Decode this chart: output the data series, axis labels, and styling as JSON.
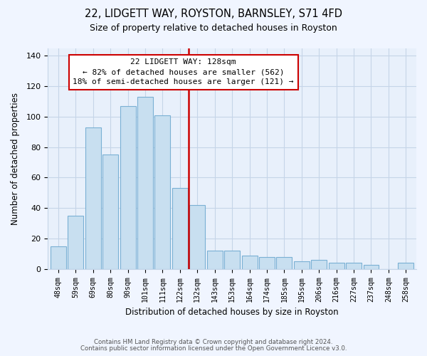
{
  "title": "22, LIDGETT WAY, ROYSTON, BARNSLEY, S71 4FD",
  "subtitle": "Size of property relative to detached houses in Royston",
  "xlabel": "Distribution of detached houses by size in Royston",
  "ylabel": "Number of detached properties",
  "bar_labels": [
    "48sqm",
    "59sqm",
    "69sqm",
    "80sqm",
    "90sqm",
    "101sqm",
    "111sqm",
    "122sqm",
    "132sqm",
    "143sqm",
    "153sqm",
    "164sqm",
    "174sqm",
    "185sqm",
    "195sqm",
    "206sqm",
    "216sqm",
    "227sqm",
    "237sqm",
    "248sqm",
    "258sqm"
  ],
  "bar_values": [
    15,
    35,
    93,
    75,
    107,
    113,
    101,
    53,
    42,
    12,
    12,
    9,
    8,
    8,
    5,
    6,
    4,
    4,
    3,
    0,
    4
  ],
  "bar_color": "#c8dff0",
  "bar_edge_color": "#7ab0d4",
  "vline_color": "#cc0000",
  "annotation_title": "22 LIDGETT WAY: 128sqm",
  "annotation_line1": "← 82% of detached houses are smaller (562)",
  "annotation_line2": "18% of semi-detached houses are larger (121) →",
  "annotation_box_color": "#ffffff",
  "annotation_box_edge_color": "#cc0000",
  "ylim": [
    0,
    145
  ],
  "yticks": [
    0,
    20,
    40,
    60,
    80,
    100,
    120,
    140
  ],
  "footnote1": "Contains HM Land Registry data © Crown copyright and database right 2024.",
  "footnote2": "Contains public sector information licensed under the Open Government Licence v3.0.",
  "bg_color": "#f0f5ff",
  "plot_bg_color": "#e8f0fb",
  "grid_color": "#c5d5e8"
}
